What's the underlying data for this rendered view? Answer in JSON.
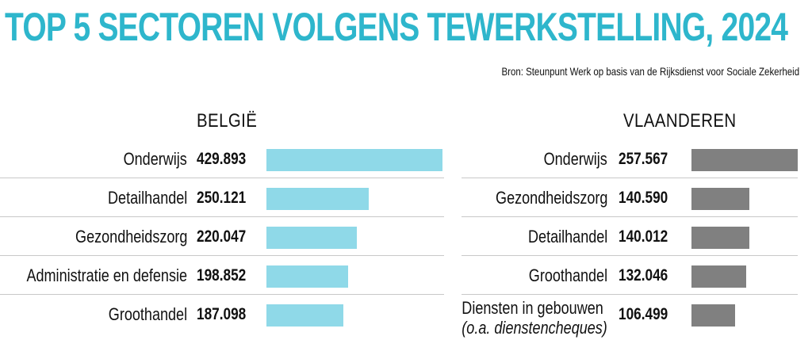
{
  "title": "TOP 5 SECTOREN VOLGENS TEWERKSTELLING, 2024",
  "source": "Bron: Steunpunt Werk op basis van de Rijksdienst voor Sociale Zekerheid",
  "colors": {
    "title": "#2eb6cc",
    "belgie_bar": "#8fd9e8",
    "vlaanderen_bar": "#808080",
    "separator": "#c8c8c8"
  },
  "chart_data": [
    {
      "type": "bar",
      "orientation": "horizontal",
      "title": "BELGIË",
      "categories": [
        "Onderwijs",
        "Detailhandel",
        "Gezondheidszorg",
        "Administratie en defensie",
        "Groothandel"
      ],
      "values": [
        429893,
        250121,
        220047,
        198852,
        187098
      ],
      "value_labels": [
        "429.893",
        "250.121",
        "220.047",
        "198.852",
        "187.098"
      ],
      "xlim": [
        0,
        429893
      ],
      "grid": false
    },
    {
      "type": "bar",
      "orientation": "horizontal",
      "title": "VLAANDEREN",
      "categories": [
        "Onderwijs",
        "Gezondheidszorg",
        "Detailhandel",
        "Groothandel",
        "Diensten in gebouwen"
      ],
      "category_notes": [
        "",
        "",
        "",
        "",
        "(o.a. dienstencheques)"
      ],
      "values": [
        257567,
        140590,
        140012,
        132046,
        106499
      ],
      "value_labels": [
        "257.567",
        "140.590",
        "140.012",
        "132.046",
        "106.499"
      ],
      "xlim": [
        0,
        257567
      ],
      "grid": false
    }
  ]
}
